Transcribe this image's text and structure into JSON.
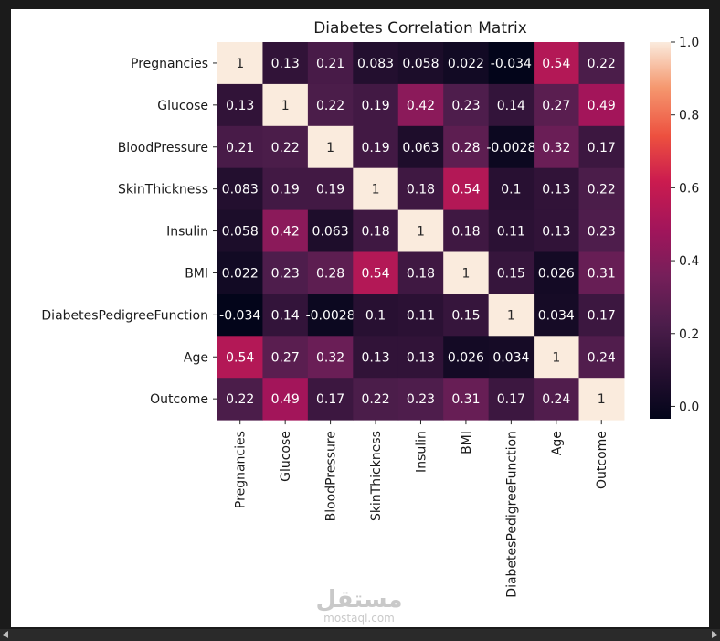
{
  "chart_data": {
    "type": "heatmap",
    "title": "Diabetes Correlation Matrix",
    "row_labels": [
      "Pregnancies",
      "Glucose",
      "BloodPressure",
      "SkinThickness",
      "Insulin",
      "BMI",
      "DiabetesPedigreeFunction",
      "Age",
      "Outcome"
    ],
    "col_labels": [
      "Pregnancies",
      "Glucose",
      "BloodPressure",
      "SkinThickness",
      "Insulin",
      "BMI",
      "DiabetesPedigreeFunction",
      "Age",
      "Outcome"
    ],
    "values": [
      [
        1,
        0.13,
        0.21,
        0.083,
        0.058,
        0.022,
        -0.034,
        0.54,
        0.22
      ],
      [
        0.13,
        1,
        0.22,
        0.19,
        0.42,
        0.23,
        0.14,
        0.27,
        0.49
      ],
      [
        0.21,
        0.22,
        1,
        0.19,
        0.063,
        0.28,
        -0.0028,
        0.32,
        0.17
      ],
      [
        0.083,
        0.19,
        0.19,
        1,
        0.18,
        0.54,
        0.1,
        0.13,
        0.22
      ],
      [
        0.058,
        0.42,
        0.063,
        0.18,
        1,
        0.18,
        0.11,
        0.13,
        0.23
      ],
      [
        0.022,
        0.23,
        0.28,
        0.54,
        0.18,
        1,
        0.15,
        0.026,
        0.31
      ],
      [
        -0.034,
        0.14,
        -0.0028,
        0.1,
        0.11,
        0.15,
        1,
        0.034,
        0.17
      ],
      [
        0.54,
        0.27,
        0.32,
        0.13,
        0.13,
        0.026,
        0.034,
        1,
        0.24
      ],
      [
        0.22,
        0.49,
        0.17,
        0.22,
        0.23,
        0.31,
        0.17,
        0.24,
        1
      ]
    ],
    "annotations": [
      [
        "1",
        "0.13",
        "0.21",
        "0.083",
        "0.058",
        "0.022",
        "-0.034",
        "0.54",
        "0.22"
      ],
      [
        "0.13",
        "1",
        "0.22",
        "0.19",
        "0.42",
        "0.23",
        "0.14",
        "0.27",
        "0.49"
      ],
      [
        "0.21",
        "0.22",
        "1",
        "0.19",
        "0.063",
        "0.28",
        "-0.0028",
        "0.32",
        "0.17"
      ],
      [
        "0.083",
        "0.19",
        "0.19",
        "1",
        "0.18",
        "0.54",
        "0.1",
        "0.13",
        "0.22"
      ],
      [
        "0.058",
        "0.42",
        "0.063",
        "0.18",
        "1",
        "0.18",
        "0.11",
        "0.13",
        "0.23"
      ],
      [
        "0.022",
        "0.23",
        "0.28",
        "0.54",
        "0.18",
        "1",
        "0.15",
        "0.026",
        "0.31"
      ],
      [
        "-0.034",
        "0.14",
        "-0.0028",
        "0.1",
        "0.11",
        "0.15",
        "1",
        "0.034",
        "0.17"
      ],
      [
        "0.54",
        "0.27",
        "0.32",
        "0.13",
        "0.13",
        "0.026",
        "0.034",
        "1",
        "0.24"
      ],
      [
        "0.22",
        "0.49",
        "0.17",
        "0.22",
        "0.23",
        "0.31",
        "0.17",
        "0.24",
        "1"
      ]
    ],
    "colormap": "rocket",
    "vmin": -0.034,
    "vmax": 1.0,
    "colorbar_ticks": [
      0.0,
      0.2,
      0.4,
      0.6,
      0.8,
      1.0
    ],
    "colorbar_tick_labels": [
      "0.0",
      "0.2",
      "0.4",
      "0.6",
      "0.8",
      "1.0"
    ],
    "xlabel": "",
    "ylabel": ""
  },
  "watermark": {
    "logo": "مستقل",
    "site": "mostaql.com"
  }
}
